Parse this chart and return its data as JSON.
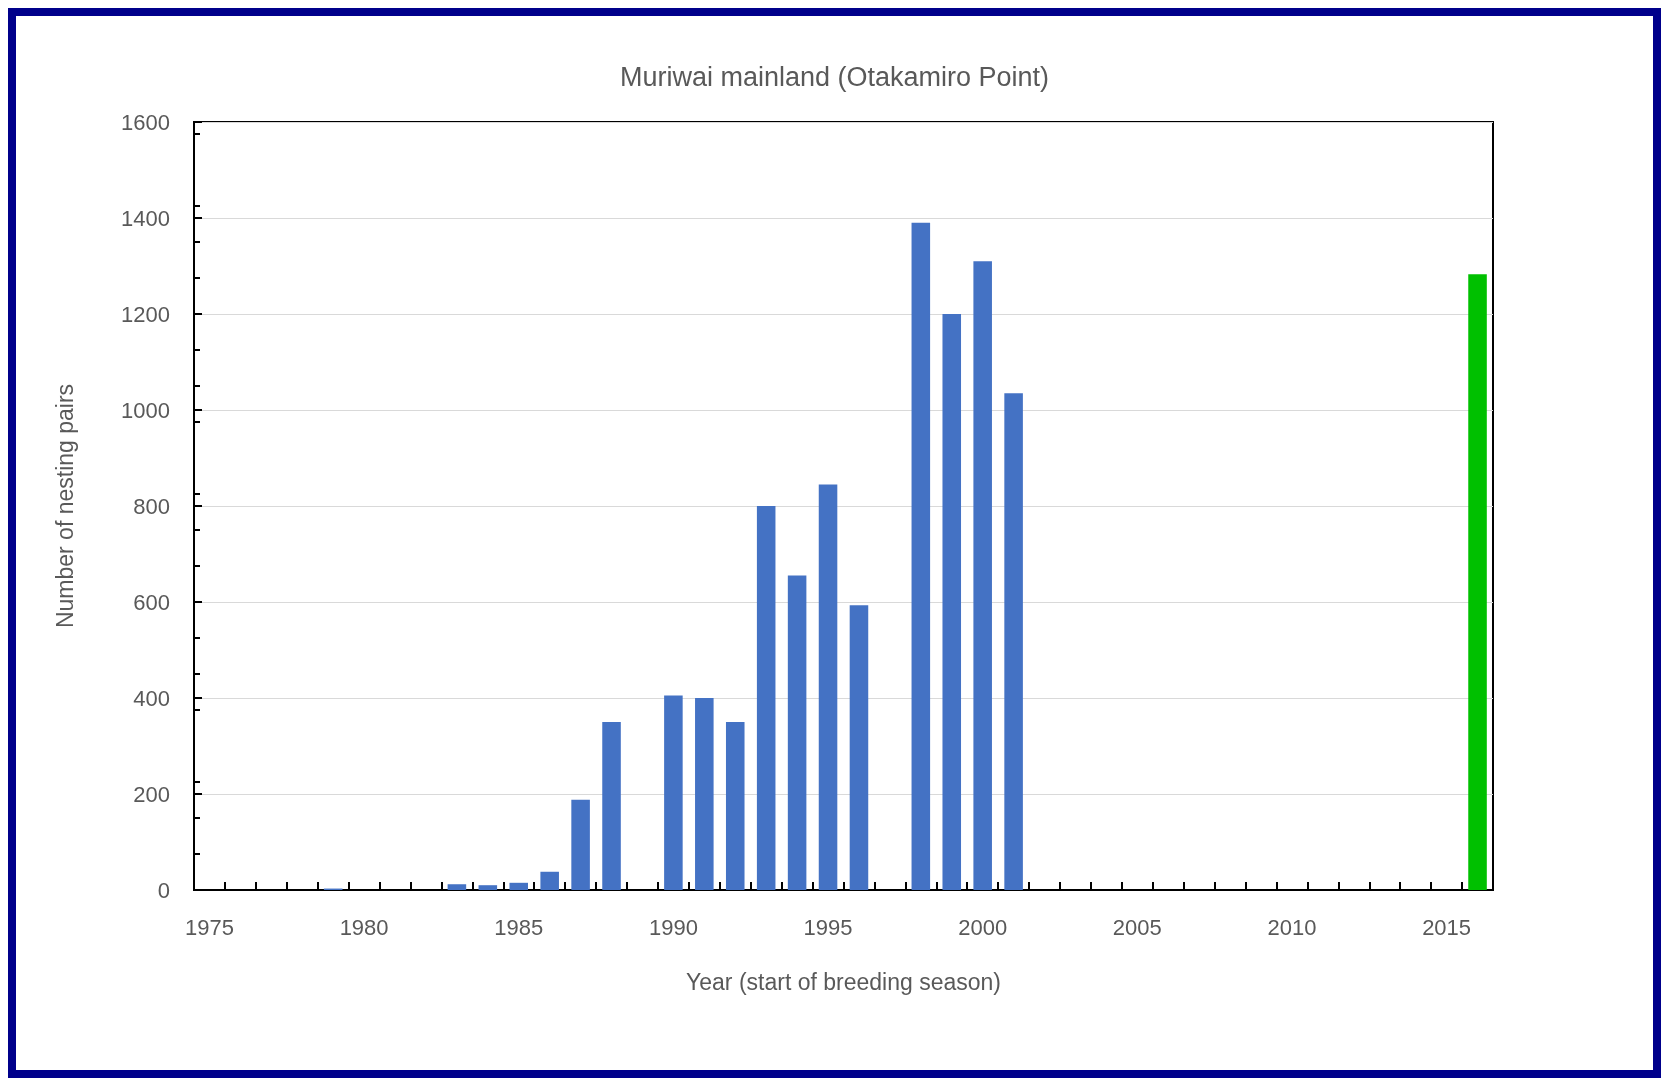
{
  "chart_data": {
    "type": "bar",
    "title": "Muriwai mainland (Otakamiro Point)",
    "xlabel": "Year (start of breeding season)",
    "ylabel": "Number of nesting pairs",
    "categories": [
      "1975",
      null,
      null,
      null,
      null,
      "1980",
      null,
      null,
      null,
      null,
      "1985",
      null,
      null,
      null,
      null,
      "1990",
      null,
      null,
      null,
      null,
      "1995",
      null,
      null,
      null,
      null,
      "2000",
      null,
      null,
      null,
      null,
      "2005",
      null,
      null,
      null,
      null,
      "2010",
      null,
      null,
      null,
      null,
      "2015",
      null
    ],
    "values": [
      null,
      null,
      null,
      null,
      3,
      null,
      null,
      null,
      12,
      10,
      15,
      38,
      188,
      350,
      null,
      405,
      400,
      350,
      800,
      655,
      845,
      593,
      null,
      1390,
      1200,
      1310,
      1035,
      null,
      null,
      null,
      null,
      null,
      null,
      null,
      null,
      null,
      null,
      null,
      null,
      null,
      null,
      1283
    ],
    "colors": [
      "#4472c4",
      "#4472c4",
      "#4472c4",
      "#4472c4",
      "#4472c4",
      "#4472c4",
      "#4472c4",
      "#4472c4",
      "#4472c4",
      "#4472c4",
      "#4472c4",
      "#4472c4",
      "#4472c4",
      "#4472c4",
      "#4472c4",
      "#4472c4",
      "#4472c4",
      "#4472c4",
      "#4472c4",
      "#4472c4",
      "#4472c4",
      "#4472c4",
      "#4472c4",
      "#4472c4",
      "#4472c4",
      "#4472c4",
      "#4472c4",
      "#4472c4",
      "#4472c4",
      "#4472c4",
      "#4472c4",
      "#4472c4",
      "#4472c4",
      "#4472c4",
      "#4472c4",
      "#4472c4",
      "#4472c4",
      "#4472c4",
      "#4472c4",
      "#4472c4",
      "#4472c4",
      "#00c000"
    ],
    "ylim": [
      0,
      1600
    ],
    "yticks": [
      0,
      200,
      400,
      600,
      800,
      1000,
      1200,
      1400,
      1600
    ],
    "grid": "y"
  }
}
